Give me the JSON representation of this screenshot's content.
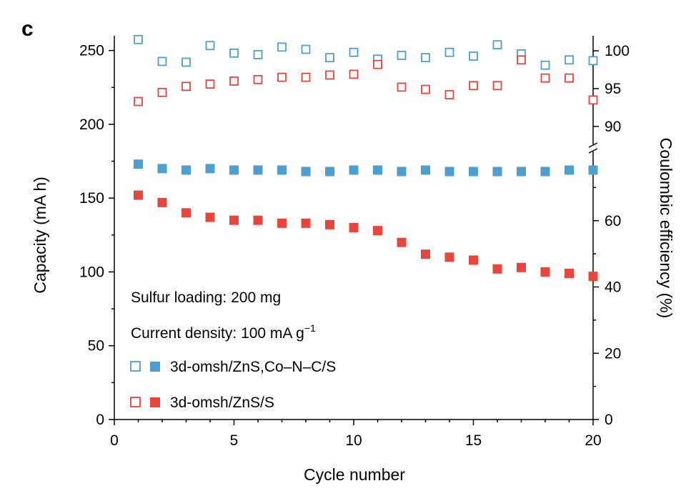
{
  "panel_label": "c",
  "chart_data": {
    "type": "scatter",
    "xlabel": "Cycle number",
    "ylabel": "Capacity (mA h)",
    "y2label": "Coulombic efficiency (%)",
    "xlim": [
      0,
      20
    ],
    "ylim": [
      0,
      260
    ],
    "xticks": [
      "0",
      "5",
      "10",
      "15",
      "20"
    ],
    "yticks": [
      "0",
      "50",
      "100",
      "150",
      "200",
      "250"
    ],
    "y2_lower_ticks": [
      "0",
      "20",
      "40",
      "60"
    ],
    "y2_upper_ticks": [
      "90",
      "95",
      "100"
    ],
    "y2_axis": {
      "broken": true,
      "lower_range": [
        0,
        80
      ],
      "upper_range": [
        88,
        102
      ]
    },
    "grid": false,
    "legend_placement": "bottom-left",
    "annotations": {
      "loading": "Sulfur loading: 200 mg",
      "current_prefix": "Current density: 100 mA g",
      "current_sup": "−1"
    },
    "x": [
      1,
      2,
      3,
      4,
      5,
      6,
      7,
      8,
      9,
      10,
      11,
      12,
      13,
      14,
      15,
      16,
      17,
      18,
      19,
      20
    ],
    "series": [
      {
        "name": "3d-omsh/ZnS,Co–N–C/S",
        "color": "#4e9fd1",
        "capacity": [
          173,
          170,
          169,
          170,
          169,
          169,
          169,
          168,
          168,
          169,
          169,
          168,
          169,
          168,
          168,
          168,
          168,
          168,
          169,
          169
        ],
        "coulombic_efficiency": [
          101.5,
          98.6,
          98.5,
          100.7,
          99.7,
          99.5,
          100.5,
          100.2,
          99.1,
          99.8,
          98.9,
          99.4,
          99.1,
          99.8,
          99.3,
          100.8,
          99.6,
          98.1,
          98.8,
          98.7
        ]
      },
      {
        "name": "3d-omsh/ZnS/S",
        "color": "#e8453c",
        "capacity": [
          152,
          147,
          140,
          137,
          135,
          135,
          133,
          133,
          132,
          130,
          128,
          120,
          112,
          110,
          108,
          102,
          103,
          100,
          99,
          97
        ],
        "coulombic_efficiency": [
          93.3,
          94.5,
          95.3,
          95.6,
          96.0,
          96.2,
          96.5,
          96.5,
          96.8,
          96.9,
          98.2,
          95.2,
          94.9,
          94.2,
          95.4,
          95.4,
          98.8,
          96.4,
          96.4,
          93.5
        ]
      }
    ]
  }
}
